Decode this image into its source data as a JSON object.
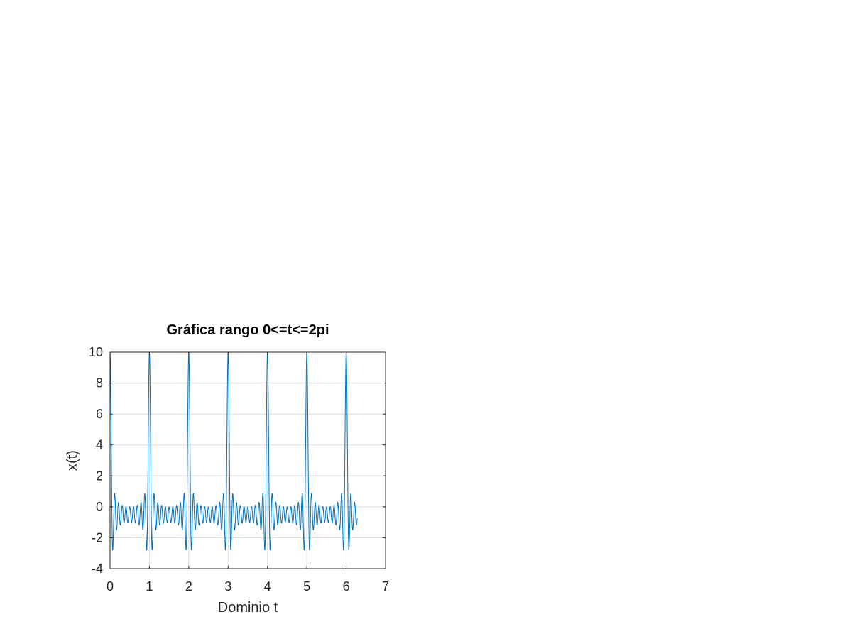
{
  "chart_data": {
    "type": "line",
    "title": "Gráfica rango 0<=t<=2pi",
    "xlabel": "Dominio t",
    "ylabel": "x(t)",
    "xlim": [
      0,
      7
    ],
    "ylim": [
      -4,
      10
    ],
    "xticks": [
      0,
      1,
      2,
      3,
      4,
      5,
      6,
      7
    ],
    "yticks": [
      -4,
      -2,
      0,
      2,
      4,
      6,
      8,
      10
    ],
    "grid": true,
    "line_color": "#0072bd",
    "grid_color": "#dcdcdc",
    "series": [
      {
        "function": "sum_{n=1}^{10} cos(2*pi*n*t)",
        "t_start": 0,
        "t_end": 6.2832,
        "t_step": 0.005,
        "peak_value": 10,
        "peak_period": 1,
        "min_value": -2.8
      }
    ]
  }
}
